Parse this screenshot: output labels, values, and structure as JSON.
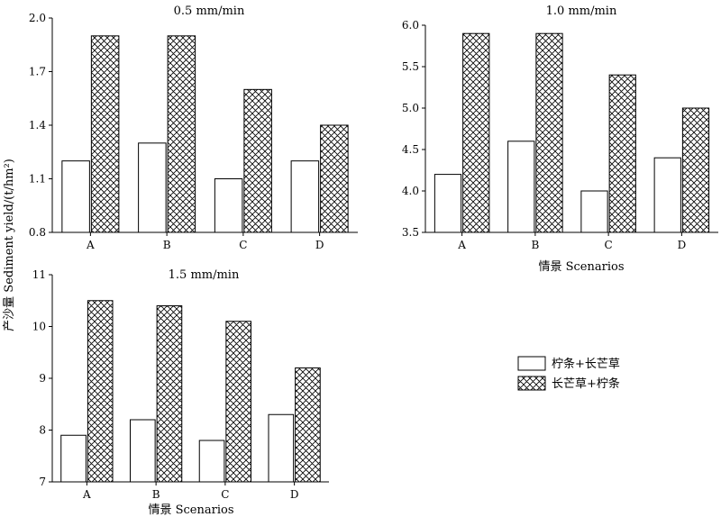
{
  "figure": {
    "ylabel": "产沙量 Sediment yield/(t/hm²)",
    "xlabel": "情景 Scenarios"
  },
  "legend": {
    "placement": "right-middle",
    "entries": [
      {
        "name": "柠条+长芒草",
        "pattern": "white"
      },
      {
        "name": "长芒草+柠条",
        "pattern": "crosshatch"
      }
    ]
  },
  "chart_data": [
    {
      "type": "bar",
      "title": "0.5 mm/min",
      "categories": [
        "A",
        "B",
        "C",
        "D"
      ],
      "ylim": [
        0.8,
        2.0
      ],
      "yticks": [
        "0.8",
        "1.1",
        "1.4",
        "1.7",
        "2.0"
      ],
      "series": [
        {
          "name": "柠条+长芒草",
          "values": [
            1.2,
            1.3,
            1.1,
            1.2
          ]
        },
        {
          "name": "长芒草+柠条",
          "values": [
            1.9,
            1.9,
            1.6,
            1.4
          ]
        }
      ]
    },
    {
      "type": "bar",
      "title": "1.0 mm/min",
      "xlabel": "情景 Scenarios",
      "categories": [
        "A",
        "B",
        "C",
        "D"
      ],
      "ylim": [
        3.5,
        6.0
      ],
      "yticks": [
        "3.5",
        "4.0",
        "4.5",
        "5.0",
        "5.5",
        "6.0"
      ],
      "series": [
        {
          "name": "柠条+长芒草",
          "values": [
            4.2,
            4.6,
            4.0,
            4.4
          ]
        },
        {
          "name": "长芒草+柠条",
          "values": [
            5.9,
            5.9,
            5.4,
            5.0
          ]
        }
      ]
    },
    {
      "type": "bar",
      "title": "1.5 mm/min",
      "xlabel": "情景 Scenarios",
      "categories": [
        "A",
        "B",
        "C",
        "D"
      ],
      "ylim": [
        7,
        11
      ],
      "yticks": [
        "7",
        "8",
        "9",
        "10",
        "11"
      ],
      "series": [
        {
          "name": "柠条+长芒草",
          "values": [
            7.9,
            8.2,
            7.8,
            8.3
          ]
        },
        {
          "name": "长芒草+柠条",
          "values": [
            10.5,
            10.4,
            10.1,
            9.2
          ]
        }
      ]
    }
  ]
}
